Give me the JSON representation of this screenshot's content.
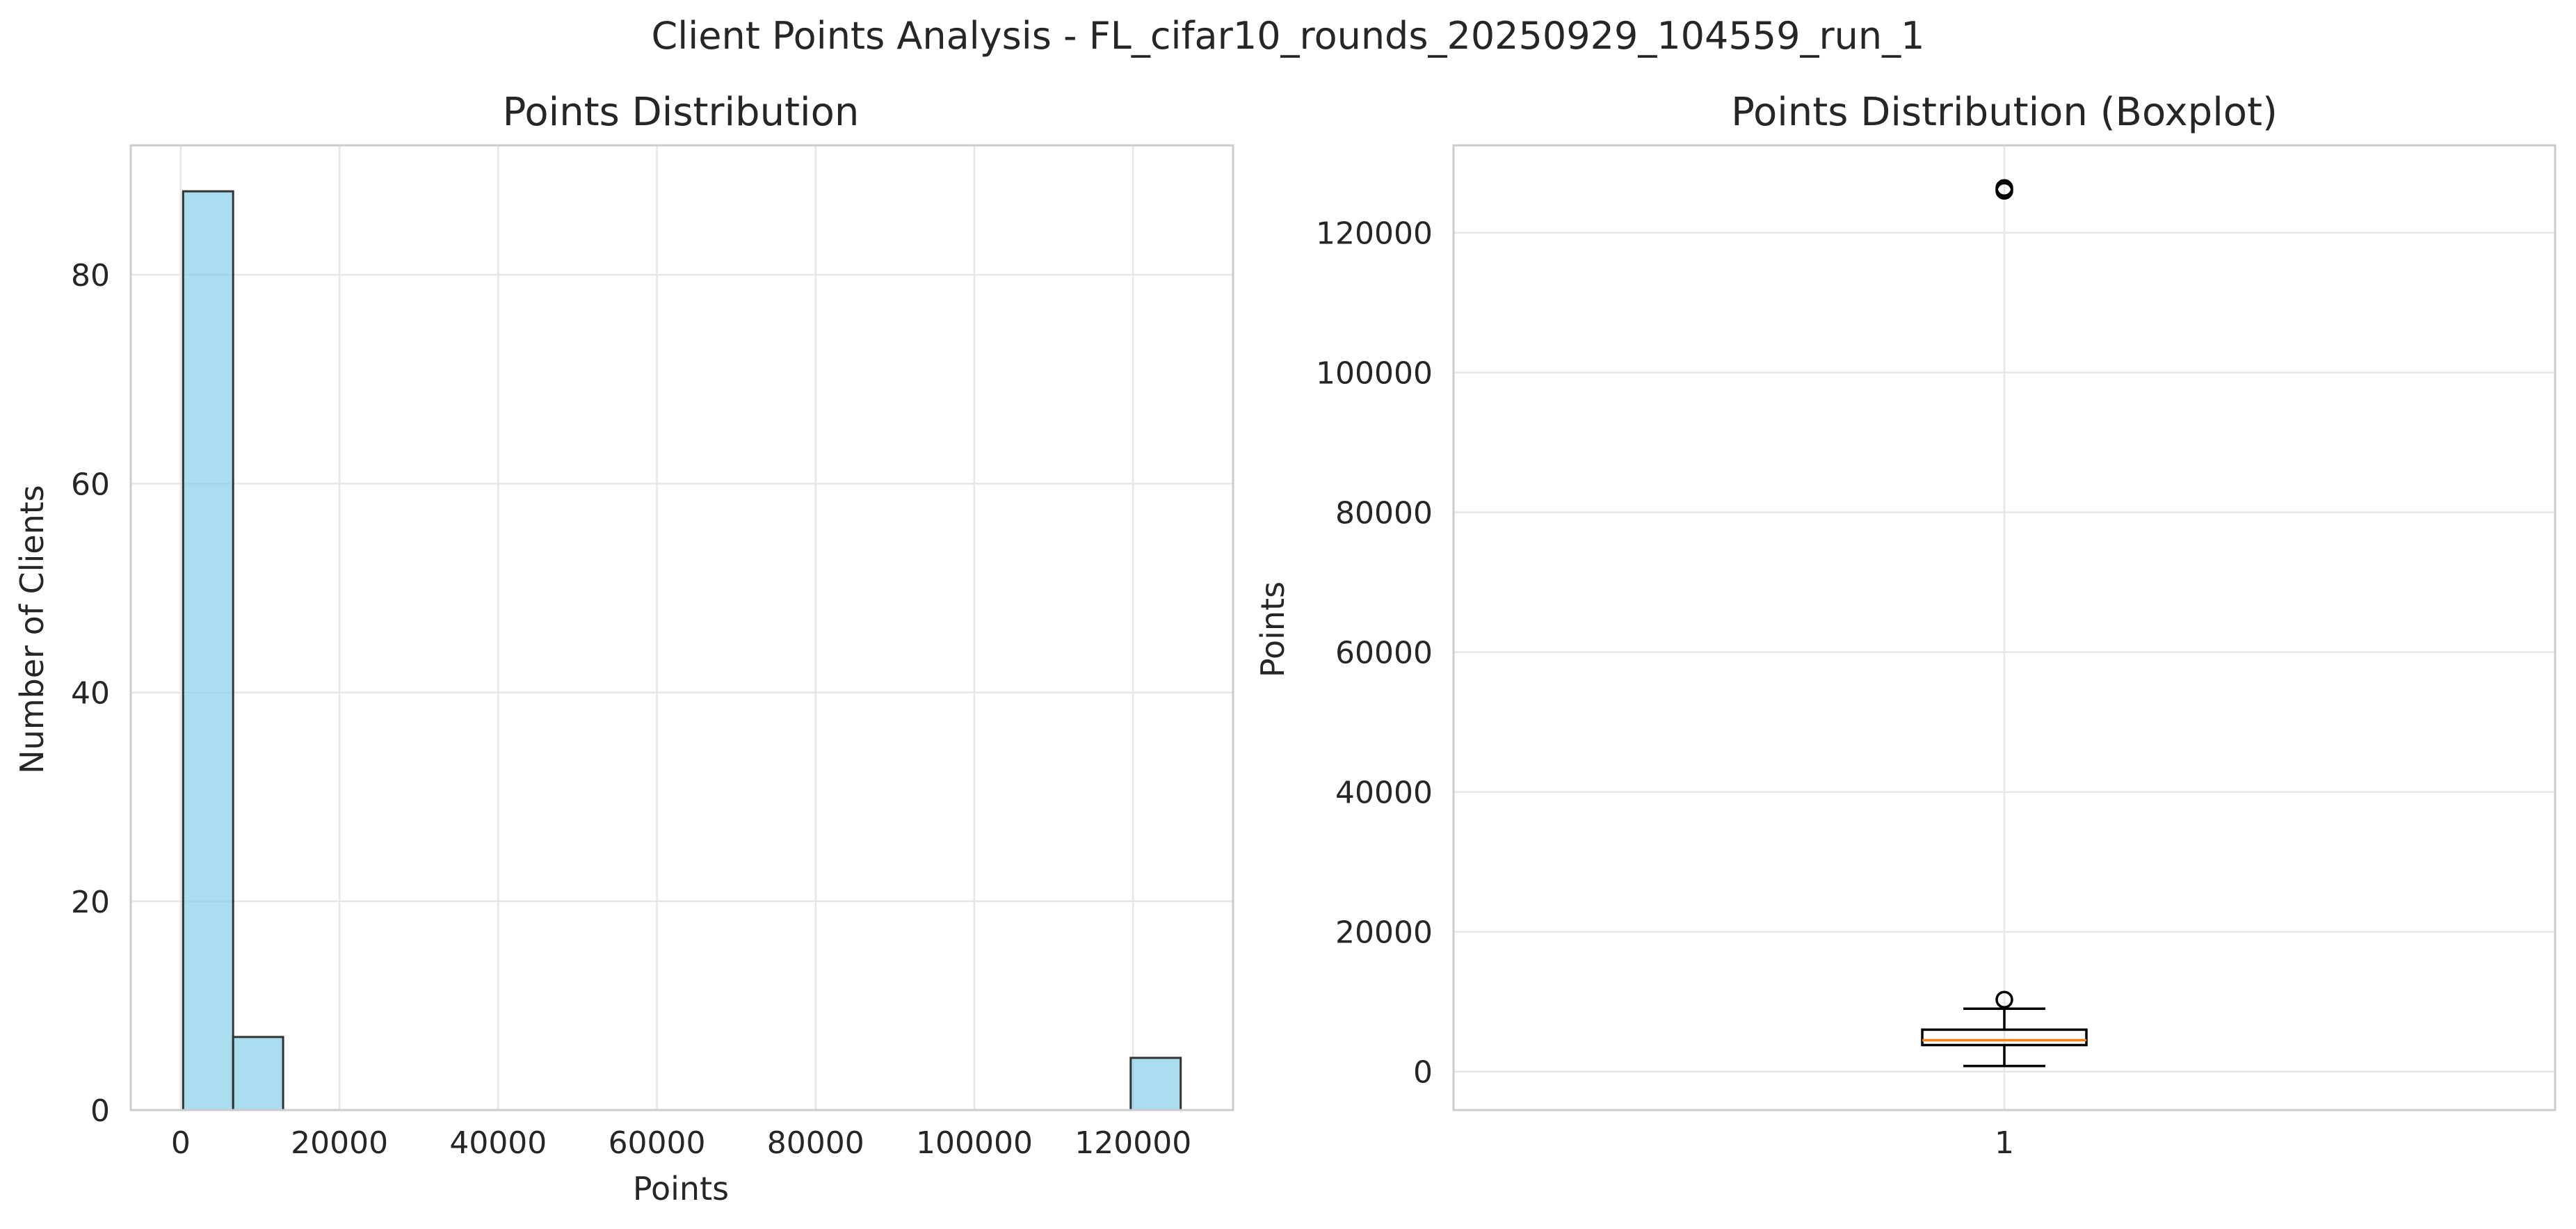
{
  "figure": {
    "suptitle": "Client Points Analysis - FL_cifar10_rounds_20250929_104559_run_1"
  },
  "chart_data": [
    {
      "type": "histogram",
      "title": "Points Distribution",
      "xlabel": "Points",
      "ylabel": "Number of Clients",
      "xlim": [
        -6300,
        132600
      ],
      "ylim": [
        0,
        92.4
      ],
      "x_ticks": [
        0,
        20000,
        40000,
        60000,
        80000,
        100000,
        120000
      ],
      "y_ticks": [
        0,
        20,
        40,
        60,
        80
      ],
      "grid": true,
      "bar_color": "#87ceeb",
      "bar_edge_color": "#333333",
      "bins": [
        {
          "start": 300,
          "end": 6600,
          "count": 88
        },
        {
          "start": 6600,
          "end": 12900,
          "count": 7
        },
        {
          "start": 119700,
          "end": 126000,
          "count": 5
        }
      ]
    },
    {
      "type": "boxplot",
      "title": "Points Distribution (Boxplot)",
      "xlabel": "",
      "ylabel": "Points",
      "categories": [
        "1"
      ],
      "ylim": [
        -5500,
        132500
      ],
      "y_ticks": [
        0,
        20000,
        40000,
        60000,
        80000,
        100000,
        120000
      ],
      "grid": true,
      "box": {
        "whisker_low": 800,
        "q1": 3800,
        "median": 4500,
        "q3": 6000,
        "whisker_high": 9000,
        "outliers": [
          10300,
          126000,
          126200,
          126400
        ]
      },
      "median_color": "#ff7f0e"
    }
  ]
}
